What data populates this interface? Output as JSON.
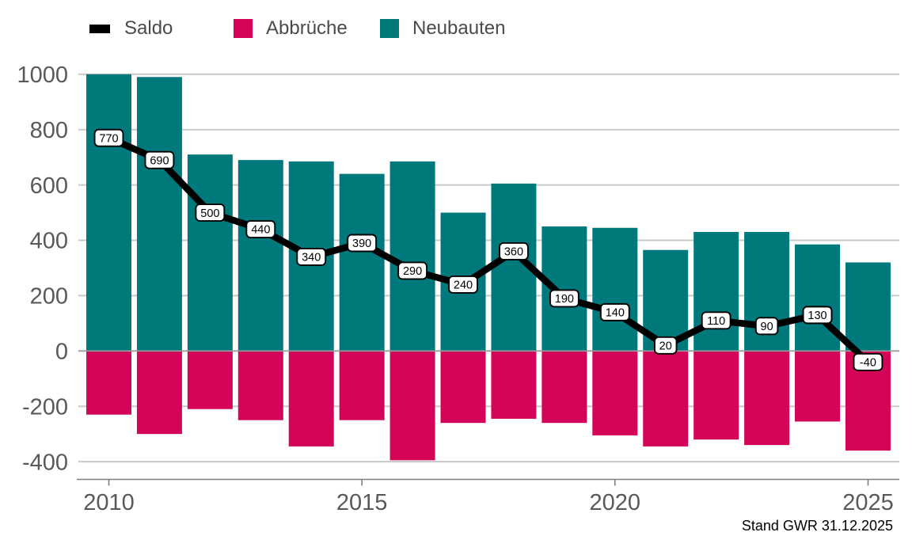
{
  "legend": {
    "items": [
      {
        "label": "Saldo",
        "color": "#000000",
        "marker": "line"
      },
      {
        "label": "Abbrüche",
        "color": "#d40559",
        "marker": "square"
      },
      {
        "label": "Neubauten",
        "color": "#00797d",
        "marker": "square"
      }
    ]
  },
  "footer": {
    "source_note": "Stand GWR 31.12.2025"
  },
  "colors": {
    "neubauten": "#00797d",
    "abbrueche": "#d40559",
    "saldo_line": "#000000",
    "gridline": "#c9c9c9",
    "zero_line": "#9c9c9c",
    "axis": "#7f7f7f",
    "axis_text": "#595959",
    "label_box_bg": "#ffffff",
    "label_box_border": "#000000"
  },
  "chart_data": {
    "type": "bar",
    "subtype": "bars-with-line-overlay",
    "categories": [
      2010,
      2011,
      2012,
      2013,
      2014,
      2015,
      2016,
      2017,
      2018,
      2019,
      2020,
      2021,
      2022,
      2023,
      2024,
      2025
    ],
    "series": [
      {
        "name": "Neubauten",
        "type": "bar",
        "color": "#00797d",
        "values": [
          1000,
          990,
          710,
          690,
          685,
          640,
          685,
          500,
          605,
          450,
          445,
          365,
          430,
          430,
          385,
          320
        ]
      },
      {
        "name": "Abbrüche",
        "type": "bar",
        "color": "#d40559",
        "values": [
          -230,
          -300,
          -210,
          -250,
          -345,
          -250,
          -395,
          -260,
          -245,
          -260,
          -305,
          -345,
          -320,
          -340,
          -255,
          -360
        ]
      },
      {
        "name": "Saldo",
        "type": "line",
        "color": "#000000",
        "data_labels": true,
        "values": [
          770,
          690,
          500,
          440,
          340,
          390,
          290,
          240,
          360,
          190,
          140,
          20,
          110,
          90,
          130,
          -40
        ]
      }
    ],
    "title": "",
    "xlabel": "",
    "ylabel": "",
    "ylim": [
      -400,
      1000
    ],
    "y_ticks": [
      1000,
      800,
      600,
      400,
      200,
      0,
      -200,
      -400
    ],
    "x_ticks": [
      2010,
      2015,
      2020,
      2025
    ],
    "grid": true,
    "legend_position": "top",
    "annotation": "Stand GWR 31.12.2025"
  }
}
